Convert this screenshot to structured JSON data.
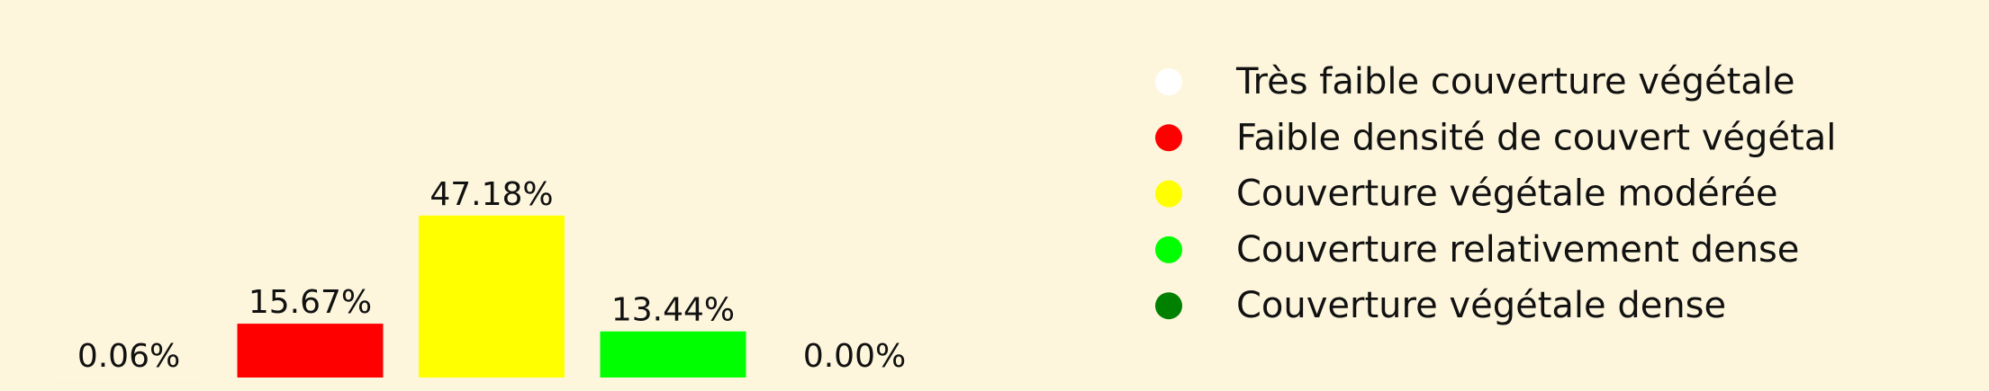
{
  "background": "#FDF6DC",
  "chart_data": {
    "type": "bar",
    "categories": [
      "Très faible couverture végétale",
      "Faible densité de couvert végétal",
      "Couverture végétale modérée",
      "Couverture relativement dense",
      "Couverture végétale dense"
    ],
    "values": [
      0.06,
      15.67,
      47.18,
      13.44,
      0.0
    ],
    "value_labels": [
      "0.06%",
      "15.67%",
      "47.18%",
      "13.44%",
      "0.00%"
    ],
    "colors": [
      "#FFFFFF",
      "#FF0000",
      "#FFFF00",
      "#00FF00",
      "#008000"
    ],
    "ylim": [
      0,
      100
    ],
    "axes_visible": false,
    "grid": false,
    "legend": {
      "placement": "right",
      "entries": [
        {
          "label": "Très faible couverture végétale",
          "color": "#FFFFFF"
        },
        {
          "label": "Faible densité de couvert végétal",
          "color": "#FF0000"
        },
        {
          "label": "Couverture végétale modérée",
          "color": "#FFFF00"
        },
        {
          "label": "Couverture relativement dense",
          "color": "#00FF00"
        },
        {
          "label": "Couverture végétale dense",
          "color": "#008000"
        }
      ]
    }
  }
}
